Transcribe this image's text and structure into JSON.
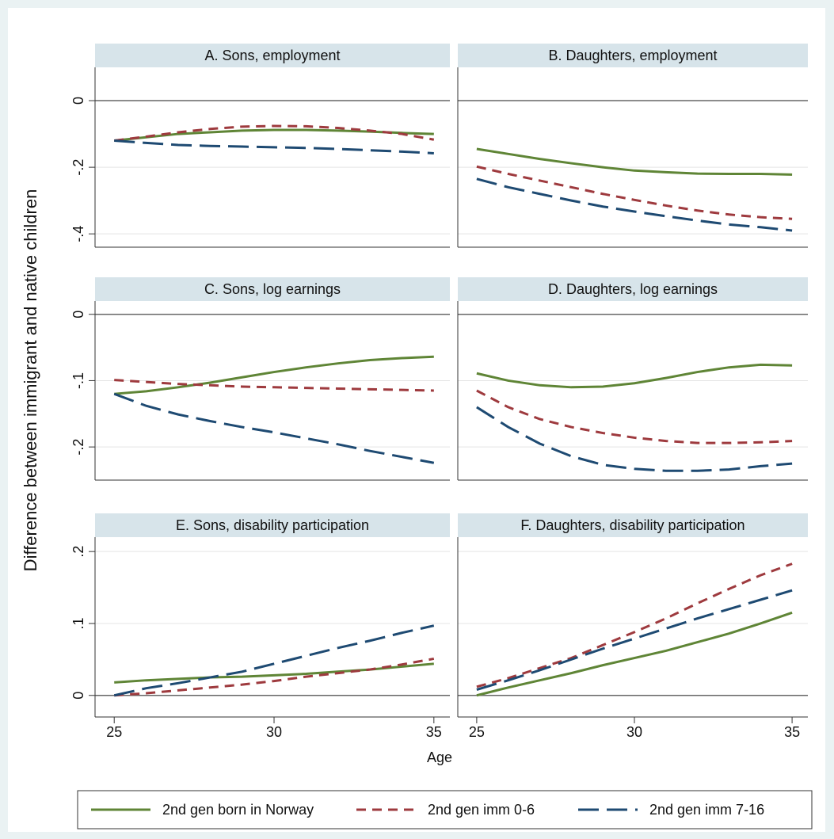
{
  "ylabel": "Difference between immigrant and native children",
  "xlabel": "Age",
  "chart_data": [
    {
      "type": "line",
      "title": "A. Sons, employment",
      "x": [
        25,
        26,
        27,
        28,
        29,
        30,
        31,
        32,
        33,
        34,
        35
      ],
      "xlim": [
        24.4,
        35.5
      ],
      "ylim": [
        -0.44,
        0.1
      ],
      "yticks": [
        0,
        {
          "value": -0.2,
          "label": "-.2"
        },
        {
          "value": -0.4,
          "label": "-.4"
        }
      ],
      "yline": 0,
      "grid": true,
      "series": [
        {
          "name": "2nd gen born in Norway",
          "color": "#5f8536",
          "values": [
            -0.12,
            -0.11,
            -0.1,
            -0.095,
            -0.09,
            -0.088,
            -0.088,
            -0.09,
            -0.093,
            -0.097,
            -0.1
          ]
        },
        {
          "name": "2nd gen imm 0-6",
          "color": "#9e3a3e",
          "values": [
            -0.12,
            -0.108,
            -0.095,
            -0.085,
            -0.078,
            -0.076,
            -0.077,
            -0.082,
            -0.09,
            -0.1,
            -0.117
          ]
        },
        {
          "name": "2nd gen imm 7-16",
          "color": "#1e4a72",
          "values": [
            -0.12,
            -0.127,
            -0.133,
            -0.136,
            -0.138,
            -0.14,
            -0.142,
            -0.145,
            -0.149,
            -0.153,
            -0.158
          ]
        }
      ]
    },
    {
      "type": "line",
      "title": "B. Daughters,  employment",
      "x": [
        25,
        26,
        27,
        28,
        29,
        30,
        31,
        32,
        33,
        34,
        35
      ],
      "xlim": [
        24.4,
        35.5
      ],
      "ylim": [
        -0.44,
        0.1
      ],
      "yticks": [
        0,
        -0.2,
        -0.4
      ],
      "yline": 0,
      "grid": true,
      "series": [
        {
          "name": "2nd gen born in Norway",
          "color": "#5f8536",
          "values": [
            -0.145,
            -0.16,
            -0.175,
            -0.188,
            -0.2,
            -0.21,
            -0.215,
            -0.219,
            -0.22,
            -0.22,
            -0.222
          ]
        },
        {
          "name": "2nd gen imm 0-6",
          "color": "#9e3a3e",
          "values": [
            -0.198,
            -0.22,
            -0.24,
            -0.26,
            -0.28,
            -0.298,
            -0.315,
            -0.33,
            -0.342,
            -0.35,
            -0.355
          ]
        },
        {
          "name": "2nd gen imm 7-16",
          "color": "#1e4a72",
          "values": [
            -0.235,
            -0.26,
            -0.28,
            -0.3,
            -0.318,
            -0.333,
            -0.347,
            -0.36,
            -0.372,
            -0.38,
            -0.39
          ]
        }
      ]
    },
    {
      "type": "line",
      "title": "C. Sons, log earnings",
      "x": [
        25,
        26,
        27,
        28,
        29,
        30,
        31,
        32,
        33,
        34,
        35
      ],
      "xlim": [
        24.4,
        35.5
      ],
      "ylim": [
        -0.25,
        0.02
      ],
      "yticks": [
        0,
        {
          "value": -0.1,
          "label": "-.1"
        },
        {
          "value": -0.2,
          "label": "-.2"
        }
      ],
      "yline": 0,
      "grid": true,
      "series": [
        {
          "name": "2nd gen born in Norway",
          "color": "#5f8536",
          "values": [
            -0.12,
            -0.116,
            -0.11,
            -0.103,
            -0.095,
            -0.087,
            -0.08,
            -0.074,
            -0.069,
            -0.066,
            -0.064
          ]
        },
        {
          "name": "2nd gen imm 0-6",
          "color": "#9e3a3e",
          "values": [
            -0.099,
            -0.102,
            -0.105,
            -0.107,
            -0.109,
            -0.11,
            -0.111,
            -0.112,
            -0.113,
            -0.114,
            -0.115
          ]
        },
        {
          "name": "2nd gen imm 7-16",
          "color": "#1e4a72",
          "values": [
            -0.12,
            -0.138,
            -0.151,
            -0.161,
            -0.17,
            -0.178,
            -0.187,
            -0.196,
            -0.206,
            -0.215,
            -0.224
          ]
        }
      ]
    },
    {
      "type": "line",
      "title": "D. Daughters, log earnings",
      "x": [
        25,
        26,
        27,
        28,
        29,
        30,
        31,
        32,
        33,
        34,
        35
      ],
      "xlim": [
        24.4,
        35.5
      ],
      "ylim": [
        -0.25,
        0.02
      ],
      "yticks": [
        0,
        -0.1,
        -0.2
      ],
      "yline": 0,
      "grid": true,
      "series": [
        {
          "name": "2nd gen born in Norway",
          "color": "#5f8536",
          "values": [
            -0.089,
            -0.1,
            -0.107,
            -0.11,
            -0.109,
            -0.104,
            -0.096,
            -0.087,
            -0.08,
            -0.076,
            -0.077
          ]
        },
        {
          "name": "2nd gen imm 0-6",
          "color": "#9e3a3e",
          "values": [
            -0.115,
            -0.14,
            -0.158,
            -0.17,
            -0.179,
            -0.186,
            -0.191,
            -0.194,
            -0.194,
            -0.193,
            -0.191
          ]
        },
        {
          "name": "2nd gen imm 7-16",
          "color": "#1e4a72",
          "values": [
            -0.14,
            -0.17,
            -0.195,
            -0.214,
            -0.227,
            -0.233,
            -0.236,
            -0.236,
            -0.234,
            -0.229,
            -0.225
          ]
        }
      ]
    },
    {
      "type": "line",
      "title": "E. Sons, disability participation",
      "x": [
        25,
        26,
        27,
        28,
        29,
        30,
        31,
        32,
        33,
        34,
        35
      ],
      "xlim": [
        24.4,
        35.5
      ],
      "xticks": [
        25,
        30,
        35
      ],
      "ylim": [
        -0.03,
        0.22
      ],
      "yticks": [
        0,
        {
          "value": 0.1,
          "label": ".1"
        },
        {
          "value": 0.2,
          "label": ".2"
        }
      ],
      "yline": 0,
      "grid": true,
      "series": [
        {
          "name": "2nd gen born in Norway",
          "color": "#5f8536",
          "values": [
            0.018,
            0.021,
            0.023,
            0.025,
            0.026,
            0.028,
            0.03,
            0.033,
            0.036,
            0.04,
            0.044
          ]
        },
        {
          "name": "2nd gen imm 0-6",
          "color": "#9e3a3e",
          "values": [
            0,
            0.003,
            0.007,
            0.011,
            0.015,
            0.02,
            0.026,
            0.031,
            0.036,
            0.043,
            0.051
          ]
        },
        {
          "name": "2nd gen imm 7-16",
          "color": "#1e4a72",
          "values": [
            0,
            0.01,
            0.017,
            0.025,
            0.033,
            0.044,
            0.055,
            0.066,
            0.076,
            0.087,
            0.097
          ]
        }
      ]
    },
    {
      "type": "line",
      "title": "F. Daughters, disability participation",
      "x": [
        25,
        26,
        27,
        28,
        29,
        30,
        31,
        32,
        33,
        34,
        35
      ],
      "xlim": [
        24.4,
        35.5
      ],
      "xticks": [
        25,
        30,
        35
      ],
      "ylim": [
        -0.03,
        0.22
      ],
      "yticks": [
        0,
        0.1,
        0.2
      ],
      "yline": 0,
      "grid": true,
      "series": [
        {
          "name": "2nd gen born in Norway",
          "color": "#5f8536",
          "values": [
            0,
            0.011,
            0.021,
            0.031,
            0.042,
            0.052,
            0.062,
            0.074,
            0.086,
            0.1,
            0.115
          ]
        },
        {
          "name": "2nd gen imm 0-6",
          "color": "#9e3a3e",
          "values": [
            0.012,
            0.024,
            0.038,
            0.052,
            0.07,
            0.088,
            0.107,
            0.128,
            0.148,
            0.167,
            0.183
          ]
        },
        {
          "name": "2nd gen imm 7-16",
          "color": "#1e4a72",
          "values": [
            0.008,
            0.021,
            0.035,
            0.05,
            0.065,
            0.079,
            0.093,
            0.107,
            0.12,
            0.133,
            0.146
          ]
        }
      ]
    }
  ]
}
